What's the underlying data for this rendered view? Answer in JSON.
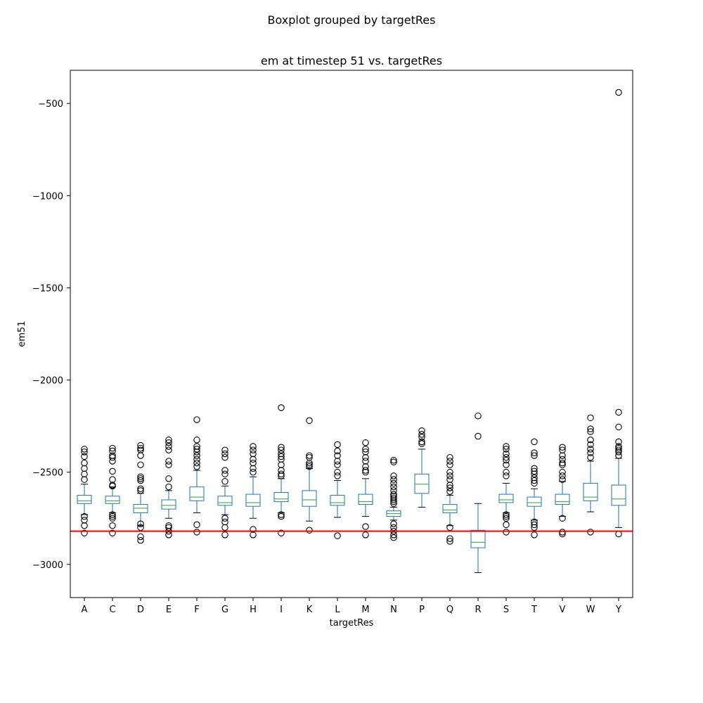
{
  "suptitle": "Boxplot grouped by targetRes",
  "chart_data": {
    "type": "boxplot",
    "title": "em at timestep 51 vs. targetRes",
    "xlabel": "targetRes",
    "ylabel": "em51",
    "ylim": [
      -3180,
      -320
    ],
    "yticks": [
      -500,
      -1000,
      -1500,
      -2000,
      -2500,
      -3000
    ],
    "ytick_labels": [
      "−500",
      "−1000",
      "−1500",
      "−2000",
      "−2500",
      "−3000"
    ],
    "grid": false,
    "reference_line": {
      "y": -2820,
      "color": "#ff0000"
    },
    "colors": {
      "box": "#1f77b4",
      "median": "#2ca02c",
      "whisker_cap": "#000000",
      "outlier": "#000000",
      "axes": "#000000"
    },
    "categories": [
      "A",
      "C",
      "D",
      "E",
      "F",
      "G",
      "H",
      "I",
      "K",
      "L",
      "M",
      "N",
      "P",
      "Q",
      "R",
      "S",
      "T",
      "V",
      "W",
      "Y"
    ],
    "boxes": [
      {
        "cat": "A",
        "whislo": -2730,
        "q1": -2670,
        "med": -2655,
        "q3": -2625,
        "whishi": -2565,
        "fliers": [
          -2375,
          -2390,
          -2415,
          -2450,
          -2480,
          -2510,
          -2540,
          -2740,
          -2760,
          -2790,
          -2830
        ]
      },
      {
        "cat": "C",
        "whislo": -2720,
        "q1": -2670,
        "med": -2655,
        "q3": -2630,
        "whishi": -2580,
        "fliers": [
          -2370,
          -2385,
          -2410,
          -2420,
          -2440,
          -2495,
          -2540,
          -2570,
          -2575,
          -2730,
          -2740,
          -2750,
          -2790,
          -2830
        ]
      },
      {
        "cat": "D",
        "whislo": -2790,
        "q1": -2720,
        "med": -2695,
        "q3": -2675,
        "whishi": -2615,
        "fliers": [
          -2355,
          -2370,
          -2380,
          -2410,
          -2460,
          -2525,
          -2535,
          -2545,
          -2590,
          -2600,
          -2780,
          -2800,
          -2850,
          -2870
        ]
      },
      {
        "cat": "E",
        "whislo": -2750,
        "q1": -2700,
        "med": -2680,
        "q3": -2650,
        "whishi": -2600,
        "fliers": [
          -2325,
          -2340,
          -2360,
          -2380,
          -2440,
          -2460,
          -2535,
          -2580,
          -2790,
          -2800,
          -2820,
          -2840
        ]
      },
      {
        "cat": "F",
        "whislo": -2720,
        "q1": -2655,
        "med": -2635,
        "q3": -2580,
        "whishi": -2490,
        "fliers": [
          -2215,
          -2325,
          -2360,
          -2375,
          -2390,
          -2410,
          -2430,
          -2450,
          -2470,
          -2785,
          -2825
        ]
      },
      {
        "cat": "G",
        "whislo": -2730,
        "q1": -2680,
        "med": -2665,
        "q3": -2630,
        "whishi": -2575,
        "fliers": [
          -2380,
          -2400,
          -2420,
          -2490,
          -2510,
          -2550,
          -2750,
          -2770,
          -2800,
          -2840
        ]
      },
      {
        "cat": "H",
        "whislo": -2750,
        "q1": -2685,
        "med": -2665,
        "q3": -2620,
        "whishi": -2525,
        "fliers": [
          -2360,
          -2380,
          -2400,
          -2430,
          -2450,
          -2480,
          -2500,
          -2810,
          -2840
        ]
      },
      {
        "cat": "I",
        "whislo": -2720,
        "q1": -2660,
        "med": -2645,
        "q3": -2610,
        "whishi": -2535,
        "fliers": [
          -2150,
          -2365,
          -2380,
          -2400,
          -2415,
          -2430,
          -2460,
          -2490,
          -2510,
          -2520,
          -2730,
          -2740,
          -2830
        ]
      },
      {
        "cat": "K",
        "whislo": -2765,
        "q1": -2685,
        "med": -2650,
        "q3": -2600,
        "whishi": -2480,
        "fliers": [
          -2220,
          -2410,
          -2420,
          -2450,
          -2460,
          -2470,
          -2815
        ]
      },
      {
        "cat": "L",
        "whislo": -2745,
        "q1": -2680,
        "med": -2665,
        "q3": -2625,
        "whishi": -2545,
        "fliers": [
          -2350,
          -2385,
          -2410,
          -2440,
          -2460,
          -2500,
          -2520,
          -2845
        ]
      },
      {
        "cat": "M",
        "whislo": -2740,
        "q1": -2675,
        "med": -2660,
        "q3": -2620,
        "whishi": -2535,
        "fliers": [
          -2340,
          -2375,
          -2390,
          -2420,
          -2440,
          -2470,
          -2490,
          -2500,
          -2795,
          -2840
        ]
      },
      {
        "cat": "N",
        "whislo": -2760,
        "q1": -2740,
        "med": -2725,
        "q3": -2710,
        "whishi": -2690,
        "fliers": [
          -2435,
          -2445,
          -2520,
          -2540,
          -2560,
          -2580,
          -2600,
          -2620,
          -2630,
          -2640,
          -2650,
          -2660,
          -2670,
          -2780,
          -2800,
          -2820,
          -2840,
          -2855
        ]
      },
      {
        "cat": "P",
        "whislo": -2690,
        "q1": -2615,
        "med": -2565,
        "q3": -2510,
        "whishi": -2375,
        "fliers": [
          -2275,
          -2295,
          -2310,
          -2335,
          -2345
        ]
      },
      {
        "cat": "Q",
        "whislo": -2790,
        "q1": -2720,
        "med": -2705,
        "q3": -2675,
        "whishi": -2625,
        "fliers": [
          -2420,
          -2440,
          -2460,
          -2500,
          -2520,
          -2540,
          -2570,
          -2585,
          -2605,
          -2800,
          -2860,
          -2875
        ]
      },
      {
        "cat": "R",
        "whislo": -3045,
        "q1": -2910,
        "med": -2880,
        "q3": -2815,
        "whishi": -2670,
        "fliers": [
          -2195,
          -2305
        ]
      },
      {
        "cat": "S",
        "whislo": -2720,
        "q1": -2665,
        "med": -2650,
        "q3": -2620,
        "whishi": -2560,
        "fliers": [
          -2360,
          -2375,
          -2400,
          -2420,
          -2435,
          -2460,
          -2500,
          -2520,
          -2730,
          -2740,
          -2750,
          -2785,
          -2825
        ]
      },
      {
        "cat": "T",
        "whislo": -2760,
        "q1": -2685,
        "med": -2665,
        "q3": -2635,
        "whishi": -2590,
        "fliers": [
          -2335,
          -2395,
          -2410,
          -2480,
          -2495,
          -2510,
          -2530,
          -2545,
          -2560,
          -2770,
          -2785,
          -2800,
          -2840
        ]
      },
      {
        "cat": "V",
        "whislo": -2740,
        "q1": -2675,
        "med": -2660,
        "q3": -2620,
        "whishi": -2550,
        "fliers": [
          -2365,
          -2380,
          -2410,
          -2430,
          -2450,
          -2460,
          -2500,
          -2520,
          -2540,
          -2750,
          -2825,
          -2835
        ]
      },
      {
        "cat": "W",
        "whislo": -2715,
        "q1": -2655,
        "med": -2635,
        "q3": -2560,
        "whishi": -2440,
        "fliers": [
          -2205,
          -2265,
          -2280,
          -2325,
          -2350,
          -2375,
          -2395,
          -2420,
          -2825
        ]
      },
      {
        "cat": "Y",
        "whislo": -2800,
        "q1": -2680,
        "med": -2645,
        "q3": -2570,
        "whishi": -2425,
        "fliers": [
          -440,
          -2175,
          -2255,
          -2335,
          -2360,
          -2370,
          -2380,
          -2390,
          -2410,
          -2835
        ]
      }
    ]
  }
}
